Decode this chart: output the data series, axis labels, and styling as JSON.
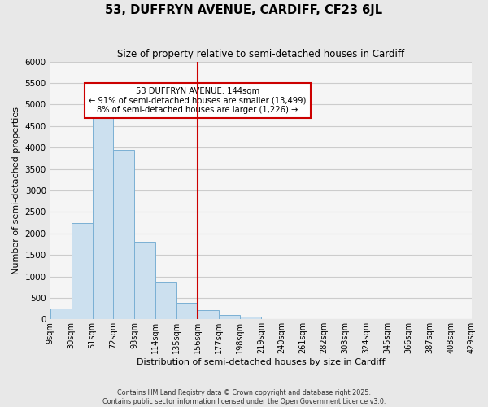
{
  "title": "53, DUFFRYN AVENUE, CARDIFF, CF23 6JL",
  "subtitle": "Size of property relative to semi-detached houses in Cardiff",
  "xlabel": "Distribution of semi-detached houses by size in Cardiff",
  "ylabel": "Number of semi-detached properties",
  "footer_line1": "Contains HM Land Registry data © Crown copyright and database right 2025.",
  "footer_line2": "Contains public sector information licensed under the Open Government Licence v3.0.",
  "bin_edges": [
    9,
    30,
    51,
    72,
    93,
    114,
    135,
    156,
    177,
    198,
    219,
    240,
    261,
    282,
    303,
    324,
    345,
    366,
    387,
    408,
    429
  ],
  "bin_labels": [
    "9sqm",
    "30sqm",
    "51sqm",
    "72sqm",
    "93sqm",
    "114sqm",
    "135sqm",
    "156sqm",
    "177sqm",
    "198sqm",
    "219sqm",
    "240sqm",
    "261sqm",
    "282sqm",
    "303sqm",
    "324sqm",
    "345sqm",
    "366sqm",
    "387sqm",
    "408sqm",
    "429sqm"
  ],
  "bar_heights": [
    250,
    2250,
    4950,
    3950,
    1800,
    850,
    380,
    220,
    100,
    70,
    0,
    0,
    0,
    0,
    0,
    0,
    0,
    0,
    0,
    0
  ],
  "bar_color": "#cce0ef",
  "bar_edge_color": "#7ab0d4",
  "ylim": [
    0,
    6000
  ],
  "yticks": [
    0,
    500,
    1000,
    1500,
    2000,
    2500,
    3000,
    3500,
    4000,
    4500,
    5000,
    5500,
    6000
  ],
  "vline_x": 6.5,
  "vline_color": "#cc0000",
  "annotation_title": "53 DUFFRYN AVENUE: 144sqm",
  "annotation_line1": "← 91% of semi-detached houses are smaller (13,499)",
  "annotation_line2": "8% of semi-detached houses are larger (1,226) →",
  "background_color": "#e8e8e8",
  "plot_bg_color": "#f5f5f5",
  "grid_color": "#cccccc"
}
